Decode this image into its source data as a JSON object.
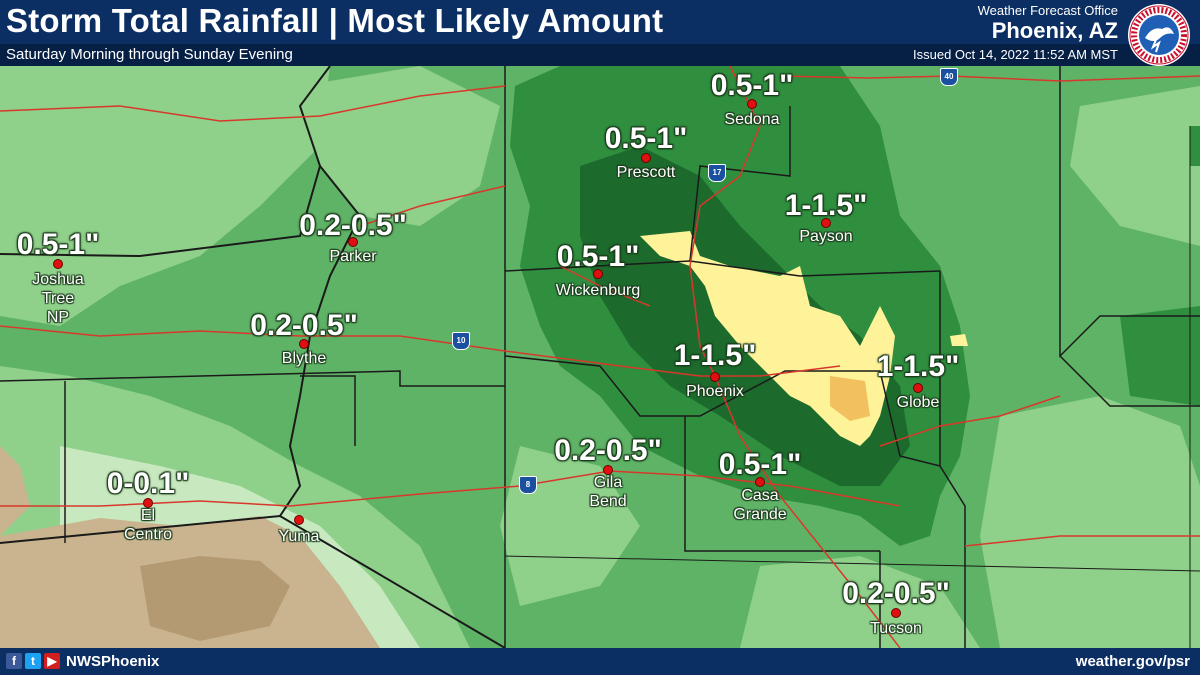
{
  "header": {
    "title": "Storm Total Rainfall | Most Likely Amount",
    "subtitle": "Saturday Morning through Sunday Evening",
    "office": "Weather Forecast Office",
    "city": "Phoenix, AZ",
    "issued": "Issued Oct 14, 2022 11:52 AM MST",
    "logo_icon": "nws-logo-icon"
  },
  "map": {
    "labels": [
      {
        "id": "sedona",
        "amount": "0.5-1\"",
        "city": "Sedona"
      },
      {
        "id": "prescott",
        "amount": "0.5-1\"",
        "city": "Prescott"
      },
      {
        "id": "payson",
        "amount": "1-1.5\"",
        "city": "Payson"
      },
      {
        "id": "parker",
        "amount": "0.2-0.5\"",
        "city": "Parker"
      },
      {
        "id": "joshua",
        "amount": "0.5-1\"",
        "city": "Joshua\nTree\nNP"
      },
      {
        "id": "wickenburg",
        "amount": "0.5-1\"",
        "city": "Wickenburg"
      },
      {
        "id": "blythe",
        "amount": "0.2-0.5\"",
        "city": "Blythe"
      },
      {
        "id": "phoenix",
        "amount": "1-1.5\"",
        "city": "Phoenix"
      },
      {
        "id": "globe",
        "amount": "1-1.5\"",
        "city": "Globe"
      },
      {
        "id": "gila",
        "amount": "0.2-0.5\"",
        "city": "Gila\nBend"
      },
      {
        "id": "casa",
        "amount": "0.5-1\"",
        "city": "Casa\nGrande"
      },
      {
        "id": "elcentro",
        "amount": "0-0.1\"",
        "city": "El\nCentro"
      },
      {
        "id": "yuma",
        "amount": "",
        "city": "Yuma"
      },
      {
        "id": "tucson",
        "amount": "0.2-0.5\"",
        "city": "Tucson"
      }
    ],
    "interstates": [
      "40",
      "17",
      "10",
      "8"
    ],
    "colors": {
      "light": "#c8e9bf",
      "mid": "#8fd08a",
      "green": "#5fb366",
      "dark": "#2f8f3f",
      "darkest": "#1c6b2c",
      "yellow": "#fff39a",
      "orange": "#f3c060",
      "roads": "#d8382c",
      "borders": "#1a1a1a"
    }
  },
  "footer": {
    "handle": "NWSPhoenix",
    "website": "weather.gov/psr",
    "social_icons": [
      "facebook-icon",
      "twitter-icon",
      "youtube-icon"
    ]
  }
}
